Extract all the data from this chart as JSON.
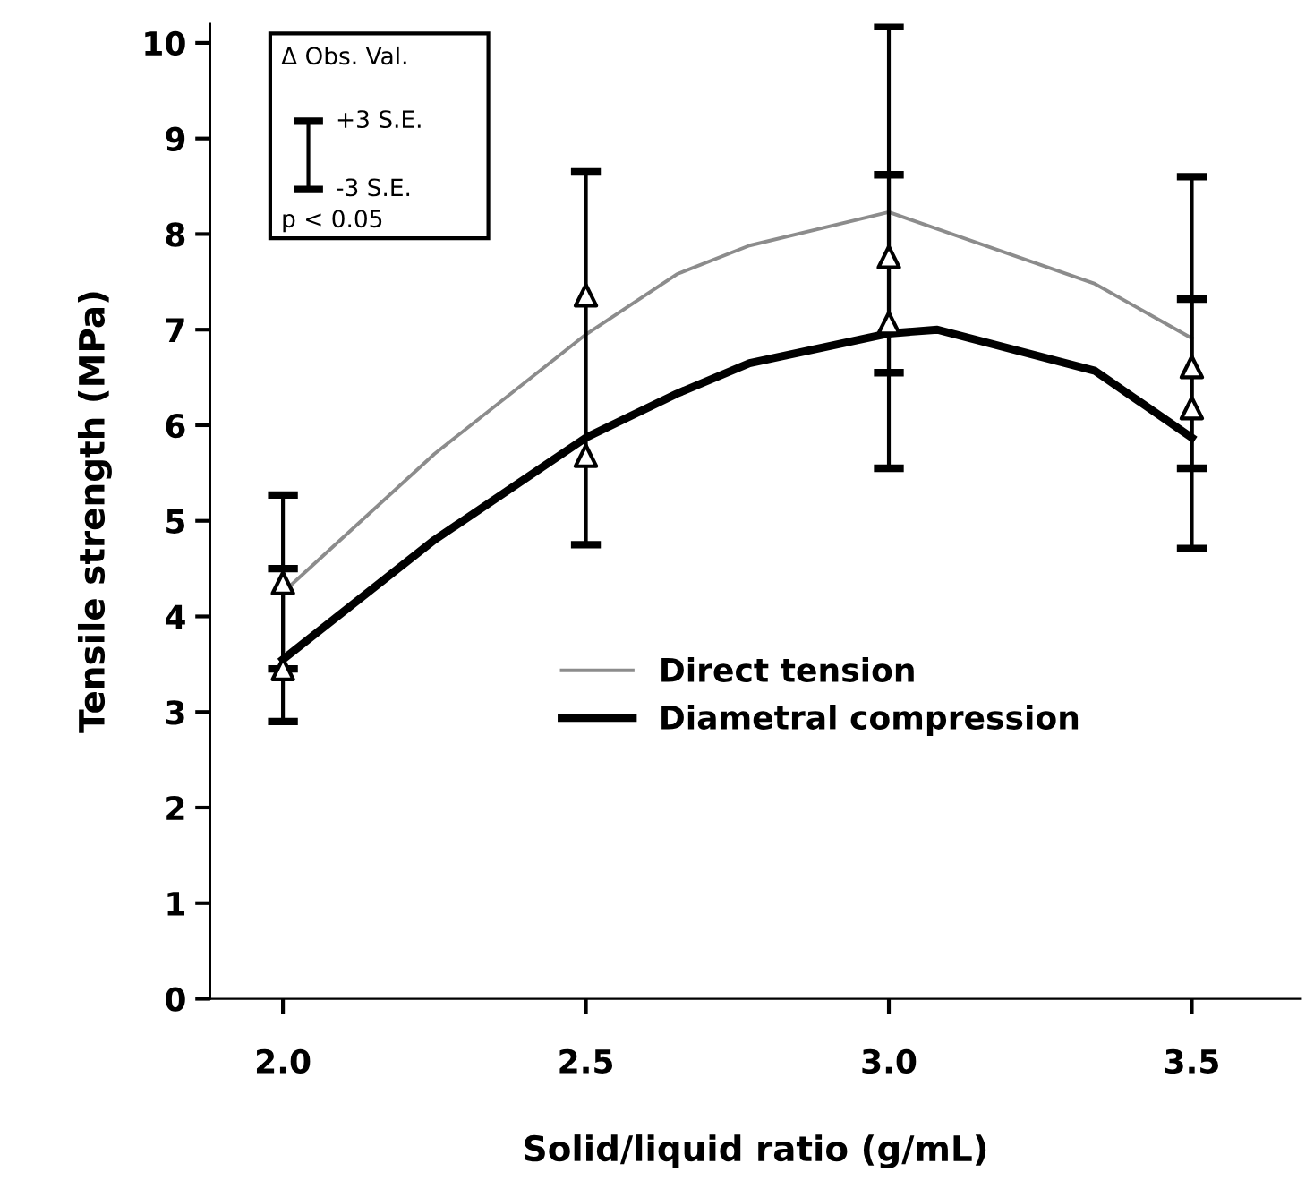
{
  "chart_data": {
    "type": "line",
    "xlabel": "Solid/liquid ratio (g/mL)",
    "ylabel": "Tensile strength (MPa)",
    "xlim": [
      1.88,
      3.68
    ],
    "xticks": [
      {
        "value": 2.0,
        "label": "2.0"
      },
      2.5,
      {
        "value": 3.0,
        "label": "3.0"
      },
      3.5
    ],
    "ylim": [
      0,
      10.2
    ],
    "yticks": [
      0,
      1,
      2,
      3,
      4,
      5,
      6,
      7,
      8,
      9,
      10
    ],
    "grid": false,
    "legend": "center",
    "series": [
      {
        "name": "Direct tension",
        "color": "#8c8c8c",
        "line_style": "solid",
        "marker": "none",
        "x": [
          2.0,
          2.25,
          2.5,
          2.65,
          2.77,
          3.0,
          3.34,
          3.5
        ],
        "values": [
          4.25,
          5.7,
          6.95,
          7.58,
          7.88,
          8.23,
          7.48,
          6.91
        ]
      },
      {
        "name": "Diametral compression",
        "color": "#000000",
        "line_style": "solid",
        "marker": "none",
        "x": [
          2.0,
          2.25,
          2.5,
          2.65,
          2.77,
          3.0,
          3.08,
          3.34,
          3.5
        ],
        "values": [
          3.55,
          4.8,
          5.87,
          6.33,
          6.65,
          6.96,
          7.0,
          6.57,
          5.87
        ]
      },
      {
        "type": "scatter",
        "color": "#000000",
        "marker": "triangle",
        "x": [
          2.0,
          2.5,
          3.0,
          3.5
        ],
        "values": [
          4.35,
          7.36,
          7.76,
          6.61
        ],
        "errors": [
          [
            2.9,
            5.27
          ],
          [
            4.75,
            8.65
          ],
          [
            5.55,
            10.17
          ],
          [
            4.71,
            8.6
          ]
        ]
      },
      {
        "type": "scatter",
        "color": "#000000",
        "marker": "triangle",
        "x": [
          2.0,
          2.5,
          3.0,
          3.5
        ],
        "values": [
          3.45,
          5.68,
          7.07,
          6.18
        ],
        "errors": [
          [
            3.45,
            4.5
          ],
          null,
          [
            6.55,
            8.62
          ],
          [
            5.55,
            7.32
          ]
        ]
      }
    ],
    "annotations": [
      "Δ Obs. Val.",
      "+3 S.E.",
      "-3 S.E.",
      "p < 0.05"
    ]
  }
}
